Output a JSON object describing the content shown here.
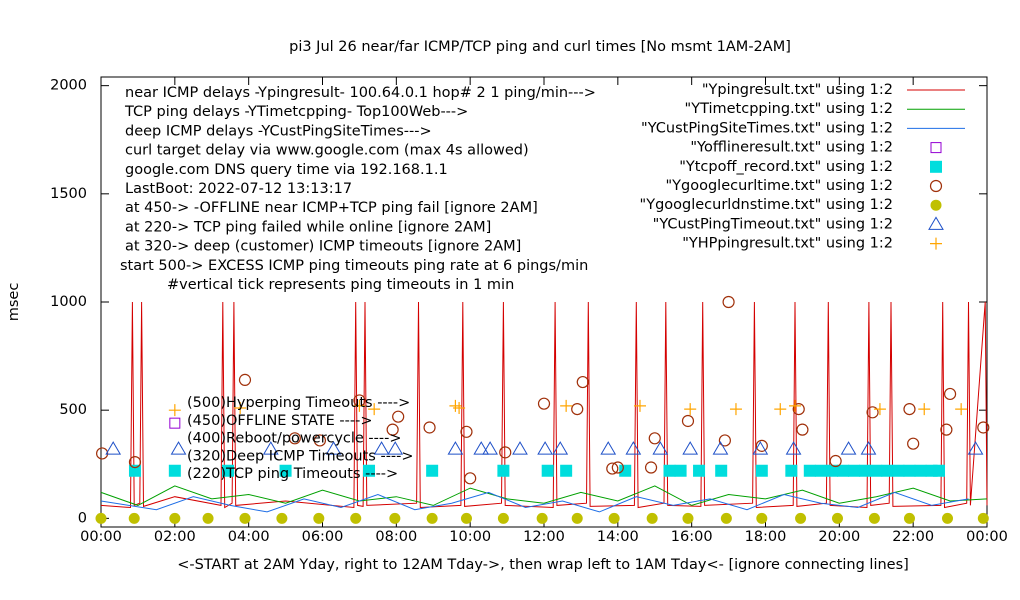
{
  "chart_data": {
    "type": "line",
    "title": "pi3 Jul 26  near/far ICMP/TCP ping and curl times [No msmt 1AM-2AM]",
    "x_label": "<-START at 2AM Yday, right to 12AM Tday->, then wrap left to 1AM Tday<- [ignore connecting lines]",
    "y_label": "msec",
    "xlim": [
      0,
      24
    ],
    "ylim": [
      -40,
      2040
    ],
    "xticks": [
      {
        "value": 0,
        "label": "00:00"
      },
      {
        "value": 2,
        "label": "02:00"
      },
      {
        "value": 4,
        "label": "04:00"
      },
      {
        "value": 6,
        "label": "06:00"
      },
      {
        "value": 8,
        "label": "08:00"
      },
      {
        "value": 10,
        "label": "10:00"
      },
      {
        "value": 12,
        "label": "12:00"
      },
      {
        "value": 14,
        "label": "14:00"
      },
      {
        "value": 16,
        "label": "16:00"
      },
      {
        "value": 18,
        "label": "18:00"
      },
      {
        "value": 20,
        "label": "20:00"
      },
      {
        "value": 22,
        "label": "22:00"
      },
      {
        "value": 24,
        "label": "00:00"
      }
    ],
    "yticks": [
      0,
      500,
      1000,
      1500,
      2000
    ],
    "grid": false,
    "legend": "top-right",
    "annotations": [
      "near ICMP delays -Ypingresult- 100.64.0.1 hop# 2 1 ping/min--->",
      "TCP ping delays -YTimetcpping- Top100Web--->",
      "deep ICMP delays -YCustPingSiteTimes--->",
      "curl target delay via www.google.com (max 4s allowed)",
      "google.com DNS query time via 192.168.1.1",
      "LastBoot: 2022-07-12 13:13:17",
      "at 450-> -OFFLINE near ICMP+TCP ping fail [ignore 2AM]",
      "at 220-> TCP ping failed while online [ignore 2AM]",
      "at 320-> deep (customer) ICMP timeouts [ignore 2AM]",
      "start 500-> EXCESS ICMP ping timeouts ping rate at 6 pings/min",
      "#vertical tick represents ping timeouts in 1 min"
    ],
    "inner_labels": [
      "(500)Hyperping Timeouts ---->",
      "(450)OFFLINE STATE ---->",
      "(400)Reboot/powercycle ---->",
      "(320)Deep ICMP Timeouts ---->",
      "(220)TCP ping Timeouts ---->"
    ],
    "series": [
      {
        "name": "\"Ypingresult.txt\" using 1:2",
        "color": "#d40000",
        "style": "line",
        "x": [
          0,
          0.8,
          0.85,
          0.9,
          1.05,
          1.1,
          1.15,
          2.0,
          3.25,
          3.3,
          3.35,
          3.55,
          3.6,
          3.65,
          5.0,
          6.85,
          6.9,
          6.95,
          7.1,
          7.15,
          7.2,
          8.55,
          8.6,
          8.65,
          9.75,
          9.8,
          9.85,
          10.85,
          10.9,
          10.95,
          12.25,
          12.3,
          12.35,
          13.15,
          13.2,
          13.25,
          14.45,
          14.5,
          14.55,
          15.25,
          15.3,
          15.35,
          16.25,
          16.3,
          16.35,
          17.65,
          17.7,
          17.75,
          18.75,
          18.8,
          18.85,
          19.65,
          19.7,
          19.75,
          20.75,
          20.8,
          20.85,
          21.35,
          21.4,
          21.45,
          22.75,
          22.8,
          22.85,
          23.45,
          23.5,
          23.55,
          23.95,
          24.0
        ],
        "values": [
          60,
          50,
          1000,
          60,
          70,
          1000,
          55,
          100,
          60,
          1000,
          50,
          70,
          1000,
          60,
          80,
          50,
          1000,
          60,
          55,
          1000,
          60,
          70,
          1000,
          50,
          60,
          1000,
          55,
          70,
          1000,
          60,
          50,
          1000,
          60,
          70,
          1000,
          55,
          60,
          1000,
          50,
          70,
          1000,
          60,
          55,
          1000,
          60,
          70,
          1000,
          50,
          60,
          1000,
          55,
          70,
          1000,
          60,
          50,
          1000,
          60,
          70,
          1000,
          55,
          60,
          1000,
          50,
          70,
          1000,
          60,
          1000,
          60
        ]
      },
      {
        "name": "\"YTimetcpping.txt\" using 1:2",
        "color": "#00a000",
        "style": "line",
        "x": [
          0,
          1,
          2,
          3,
          4,
          5,
          6,
          7,
          8,
          9,
          10,
          11,
          12,
          13,
          14,
          15,
          16,
          17,
          18,
          19,
          20,
          21,
          22,
          23,
          24
        ],
        "values": [
          120,
          60,
          150,
          90,
          110,
          70,
          130,
          80,
          100,
          60,
          140,
          90,
          70,
          120,
          80,
          150,
          60,
          110,
          90,
          130,
          70,
          100,
          140,
          80,
          90
        ]
      },
      {
        "name": "\"YCustPingSiteTimes.txt\" using 1:2",
        "color": "#1e6ee6",
        "style": "line",
        "x": [
          0,
          1.5,
          2.5,
          3.5,
          4.5,
          5.5,
          6.5,
          7.5,
          8.5,
          9.5,
          10.5,
          11.5,
          12.5,
          13.5,
          14.5,
          15.5,
          16.5,
          17.5,
          18.5,
          19.5,
          20.5,
          21.5,
          22.5,
          23.5
        ],
        "values": [
          80,
          40,
          100,
          60,
          30,
          90,
          50,
          110,
          40,
          70,
          120,
          50,
          80,
          30,
          100,
          60,
          90,
          40,
          110,
          70,
          50,
          120,
          60,
          90
        ]
      },
      {
        "name": "\"Yofflineresult.txt\" using 1:2",
        "color": "#9400d3",
        "style": "points",
        "marker": "square-open",
        "x": [
          2.0
        ],
        "values": [
          440
        ]
      },
      {
        "name": "\"Ytcpoff_record.txt\" using 1:2",
        "color": "#00dddd",
        "style": "points",
        "marker": "square-filled",
        "x": [
          0.92,
          2.0,
          3.44,
          5.0,
          7.26,
          8.97,
          10.9,
          12.1,
          12.6,
          14.2,
          15.4,
          15.7,
          16.2,
          16.8,
          17.9,
          18.7,
          19.2,
          19.5,
          19.8,
          20.1,
          20.4,
          20.7,
          21.0,
          21.3,
          21.6,
          21.9,
          22.2,
          22.5,
          22.7
        ],
        "values": [
          220,
          220,
          220,
          220,
          220,
          220,
          220,
          220,
          220,
          220,
          220,
          220,
          220,
          220,
          220,
          220,
          220,
          220,
          220,
          220,
          220,
          220,
          220,
          220,
          220,
          220,
          220,
          220,
          220
        ]
      },
      {
        "name": "\"Ygooglecurltime.txt\" using 1:2",
        "color": "#a0300a",
        "style": "points",
        "marker": "circle-open",
        "x": [
          0.03,
          0.92,
          3.9,
          5.25,
          5.93,
          7.0,
          7.9,
          8.05,
          8.9,
          9.9,
          10.0,
          10.95,
          12.0,
          12.9,
          13.05,
          13.85,
          14.0,
          14.9,
          15.0,
          15.9,
          16.9,
          17.0,
          17.9,
          18.9,
          19.0,
          19.9,
          20.9,
          21.9,
          22.0,
          22.9,
          23.0,
          23.9
        ],
        "values": [
          300,
          260,
          640,
          370,
          360,
          545,
          410,
          470,
          420,
          400,
          185,
          305,
          530,
          505,
          630,
          230,
          235,
          235,
          370,
          450,
          360,
          1000,
          335,
          505,
          410,
          265,
          490,
          505,
          345,
          410,
          575,
          420
        ]
      },
      {
        "name": "\"Ygooglecurldnstime.txt\" using 1:2",
        "color": "#c0c000",
        "style": "points",
        "marker": "circle-filled",
        "x": [
          0,
          0.9,
          2,
          2.9,
          3.9,
          4.9,
          5.9,
          6.9,
          7.96,
          8.97,
          9.9,
          10.9,
          11.95,
          12.9,
          13.9,
          14.93,
          15.9,
          16.94,
          17.9,
          18.95,
          19.95,
          20.95,
          21.9,
          22.93,
          23.9
        ],
        "values": [
          0,
          0,
          0,
          0,
          0,
          0,
          0,
          0,
          0,
          0,
          0,
          0,
          0,
          0,
          0,
          0,
          0,
          0,
          0,
          0,
          0,
          0,
          0,
          0,
          0
        ]
      },
      {
        "name": "\"YCustPingTimeout.txt\" using 1:2",
        "color": "#1e50c8",
        "style": "points",
        "marker": "triangle-open",
        "x": [
          0.33,
          2.1,
          4.6,
          6.3,
          7.6,
          7.97,
          9.6,
          10.3,
          10.54,
          11.35,
          12.03,
          12.44,
          13.74,
          14.42,
          15.15,
          15.96,
          16.78,
          17.86,
          18.76,
          20.25,
          20.79,
          23.69
        ],
        "values": [
          320,
          320,
          320,
          320,
          320,
          320,
          320,
          320,
          320,
          320,
          320,
          320,
          320,
          320,
          320,
          320,
          320,
          320,
          320,
          320,
          320,
          320
        ]
      },
      {
        "name": "\"YHPpingresult.txt\" using 1:2",
        "color": "#ffa500",
        "style": "points",
        "marker": "plus",
        "x": [
          2.0,
          3.77,
          7.0,
          7.4,
          9.6,
          9.7,
          12.6,
          14.6,
          15.96,
          17.2,
          18.4,
          18.8,
          21.1,
          22.3,
          23.3
        ],
        "values": [
          500,
          510,
          520,
          505,
          520,
          510,
          520,
          520,
          505,
          505,
          505,
          520,
          505,
          505,
          505
        ]
      }
    ]
  }
}
